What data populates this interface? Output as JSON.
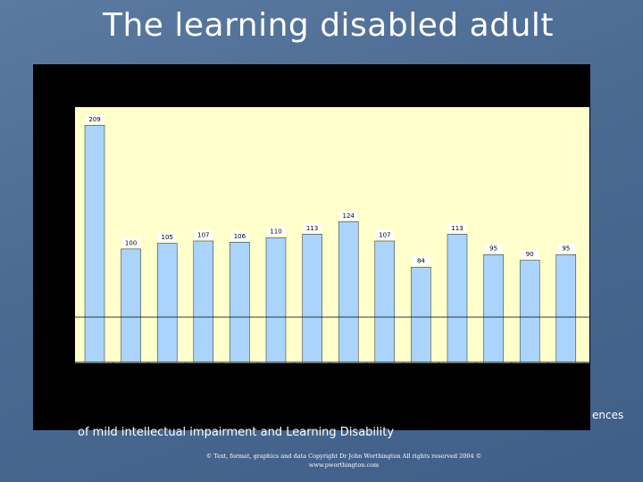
{
  "slide": {
    "title": "The learning disabled adult",
    "bottom_text": "of mild intellectual impairment and Learning Disability",
    "right_fragment": "ences",
    "copyright_line1": "© Text, format, graphics and data Copyright Dr John Worthington All rights reserved 2004 ©",
    "copyright_line2": "www.pworthington.com"
  },
  "colors": {
    "background": "#4a6a92",
    "plot_area": "#ffffcc",
    "bar": "#aad4fb",
    "frame": "#000000"
  },
  "chart_data": {
    "type": "bar",
    "categories": [
      "",
      "",
      "",
      "",
      "",
      "",
      "",
      "",
      "",
      "",
      "",
      "",
      "",
      ""
    ],
    "values": [
      209,
      100,
      105,
      107,
      106,
      110,
      113,
      124,
      107,
      84,
      113,
      95,
      90,
      95
    ],
    "labels": [
      "209",
      "100",
      "105",
      "107",
      "106",
      "110",
      "113",
      "124",
      "107",
      "84",
      "113",
      "95",
      "90",
      "95"
    ],
    "ylim": [
      0,
      225
    ],
    "reference_line": 40,
    "grid": false,
    "legend": "none",
    "title": "",
    "xlabel": "",
    "ylabel": ""
  }
}
